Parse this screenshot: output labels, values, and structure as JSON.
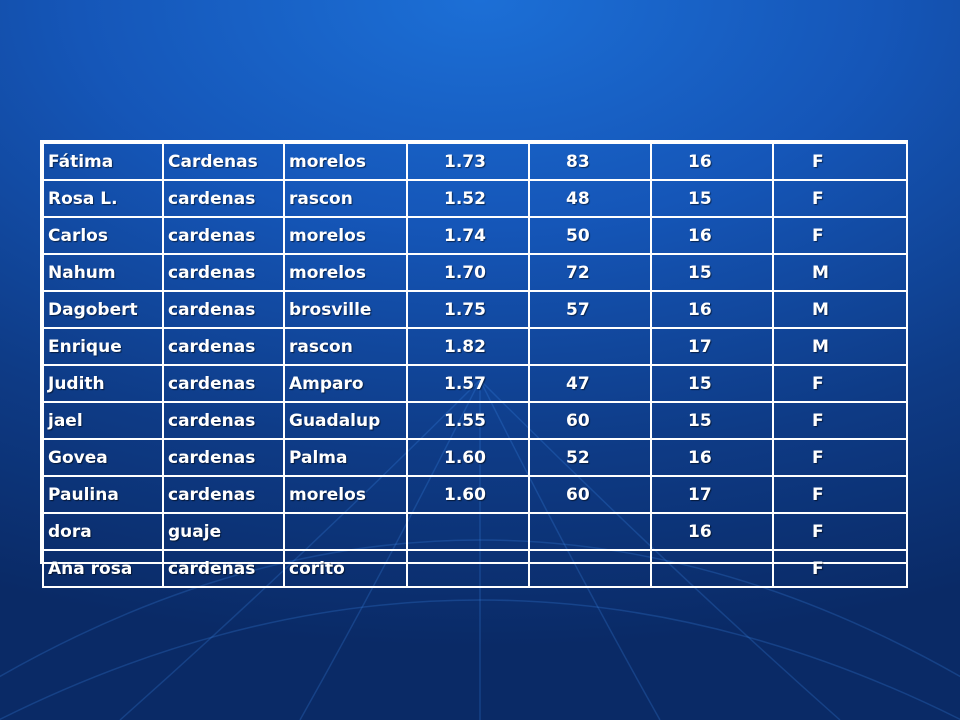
{
  "table": {
    "rows": [
      [
        "Fátima",
        "Cardenas",
        "morelos",
        "1.73",
        "83",
        "16",
        "F"
      ],
      [
        "Rosa L.",
        "cardenas",
        "rascon",
        "1.52",
        "48",
        "15",
        "F"
      ],
      [
        "Carlos",
        "cardenas",
        "morelos",
        "1.74",
        "50",
        "16",
        "F"
      ],
      [
        "Nahum",
        "cardenas",
        "morelos",
        "1.70",
        "72",
        "15",
        "M"
      ],
      [
        "Dagobert",
        "cardenas",
        "brosville",
        "1.75",
        "57",
        "16",
        "M"
      ],
      [
        "Enrique",
        "cardenas",
        "rascon",
        "1.82",
        "",
        "17",
        "M"
      ],
      [
        "Judith",
        "cardenas",
        "Amparo",
        "1.57",
        "47",
        "15",
        "F"
      ],
      [
        "jael",
        "cardenas",
        "Guadalup",
        "1.55",
        "60",
        "15",
        "F"
      ],
      [
        "Govea",
        "cardenas",
        "Palma",
        "1.60",
        "52",
        "16",
        "F"
      ],
      [
        "Paulina",
        "cardenas",
        "morelos",
        "1.60",
        "60",
        "17",
        "F"
      ],
      [
        "dora",
        "guaje",
        "",
        "",
        "",
        "16",
        "F"
      ],
      [
        "Ana rosa",
        "cardenas",
        "corito",
        "",
        "",
        "",
        "F"
      ]
    ]
  },
  "colors": {
    "background_top": "#1c6fd6",
    "background_bottom": "#0a2a66",
    "text": "#ffffff",
    "grid": "#ffffff"
  }
}
